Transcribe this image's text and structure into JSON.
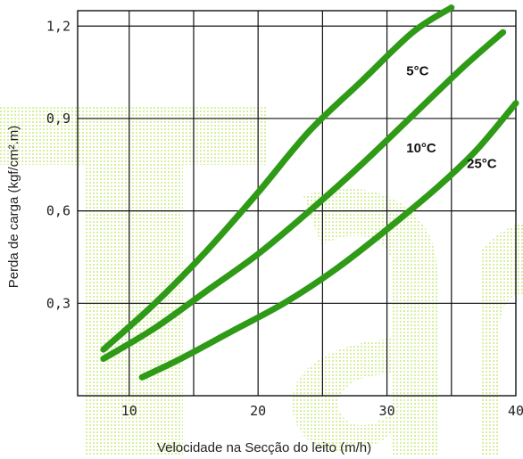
{
  "chart_data": {
    "type": "line",
    "title": "",
    "xlabel": "Velocidade na Secção do leito (m/h)",
    "ylabel": "Perda de carga (kgf/cm².m)",
    "xlim": [
      6,
      40
    ],
    "ylim": [
      0,
      1.25
    ],
    "x_ticks": [
      10,
      20,
      30,
      40
    ],
    "y_ticks": [
      0.3,
      0.6,
      0.9,
      1.2
    ],
    "x_tick_labels": [
      "10",
      "20",
      "30",
      "40"
    ],
    "y_tick_labels": [
      "0,3",
      "0,6",
      "0,9",
      "1,2"
    ],
    "x_grid": [
      10,
      15,
      20,
      25,
      30,
      35
    ],
    "y_grid": [
      0.3,
      0.6,
      0.9,
      1.2
    ],
    "grid": true,
    "legend": "none",
    "colors": {
      "series": "#2e9a16",
      "background_pattern": "#d9efa6",
      "grid": "#111111"
    },
    "background_watermark": "Ta",
    "series": [
      {
        "name": "5°C",
        "label_at": [
          31.5,
          1.04
        ],
        "points": [
          [
            8,
            0.15
          ],
          [
            12,
            0.3
          ],
          [
            16,
            0.47
          ],
          [
            20,
            0.66
          ],
          [
            24,
            0.86
          ],
          [
            28,
            1.02
          ],
          [
            32,
            1.18
          ],
          [
            35,
            1.26
          ]
        ]
      },
      {
        "name": "10°C",
        "label_at": [
          31.5,
          0.79
        ],
        "points": [
          [
            8,
            0.12
          ],
          [
            12,
            0.22
          ],
          [
            16,
            0.34
          ],
          [
            20,
            0.46
          ],
          [
            24,
            0.6
          ],
          [
            28,
            0.75
          ],
          [
            32,
            0.91
          ],
          [
            36,
            1.07
          ],
          [
            39,
            1.18
          ]
        ]
      },
      {
        "name": "25°C",
        "label_at": [
          36.2,
          0.74
        ],
        "points": [
          [
            11,
            0.06
          ],
          [
            14,
            0.12
          ],
          [
            18,
            0.21
          ],
          [
            22,
            0.3
          ],
          [
            26,
            0.41
          ],
          [
            30,
            0.54
          ],
          [
            34,
            0.68
          ],
          [
            37,
            0.8
          ],
          [
            40,
            0.95
          ]
        ]
      }
    ]
  }
}
